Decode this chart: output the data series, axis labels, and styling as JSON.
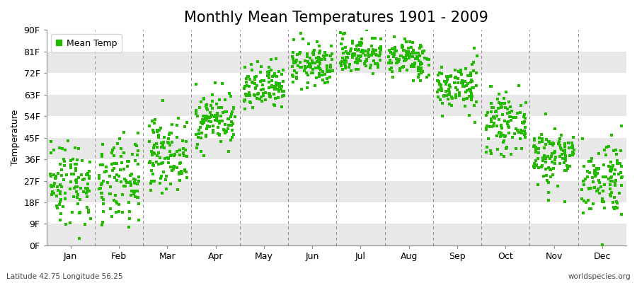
{
  "title": "Monthly Mean Temperatures 1901 - 2009",
  "ylabel": "Temperature",
  "xlabel_bottom_left": "Latitude 42.75 Longitude 56.25",
  "xlabel_bottom_right": "worldspecies.org",
  "dot_color": "#22bb00",
  "background_color": "#ffffff",
  "band_colors": [
    "#ffffff",
    "#e8e8e8"
  ],
  "ylim": [
    0,
    90
  ],
  "yticks": [
    0,
    9,
    18,
    27,
    36,
    45,
    54,
    63,
    72,
    81,
    90
  ],
  "ytick_labels": [
    "0F",
    "9F",
    "18F",
    "27F",
    "36F",
    "45F",
    "54F",
    "63F",
    "72F",
    "81F",
    "90F"
  ],
  "months": [
    "Jan",
    "Feb",
    "Mar",
    "Apr",
    "May",
    "Jun",
    "Jul",
    "Aug",
    "Sep",
    "Oct",
    "Nov",
    "Dec"
  ],
  "n_years": 109,
  "monthly_means_C": [
    -3.0,
    -3.5,
    3.5,
    11.5,
    18.5,
    24.0,
    26.5,
    25.5,
    19.0,
    10.5,
    3.0,
    -2.0
  ],
  "monthly_stds_C": [
    5.0,
    5.0,
    4.0,
    3.2,
    2.8,
    2.5,
    2.2,
    2.2,
    2.8,
    3.2,
    3.5,
    4.5
  ],
  "seed": 42,
  "figsize": [
    9.0,
    4.0
  ],
  "dpi": 100,
  "title_fontsize": 15,
  "axis_fontsize": 9,
  "label_fontsize": 9,
  "legend_label": "Mean Temp"
}
